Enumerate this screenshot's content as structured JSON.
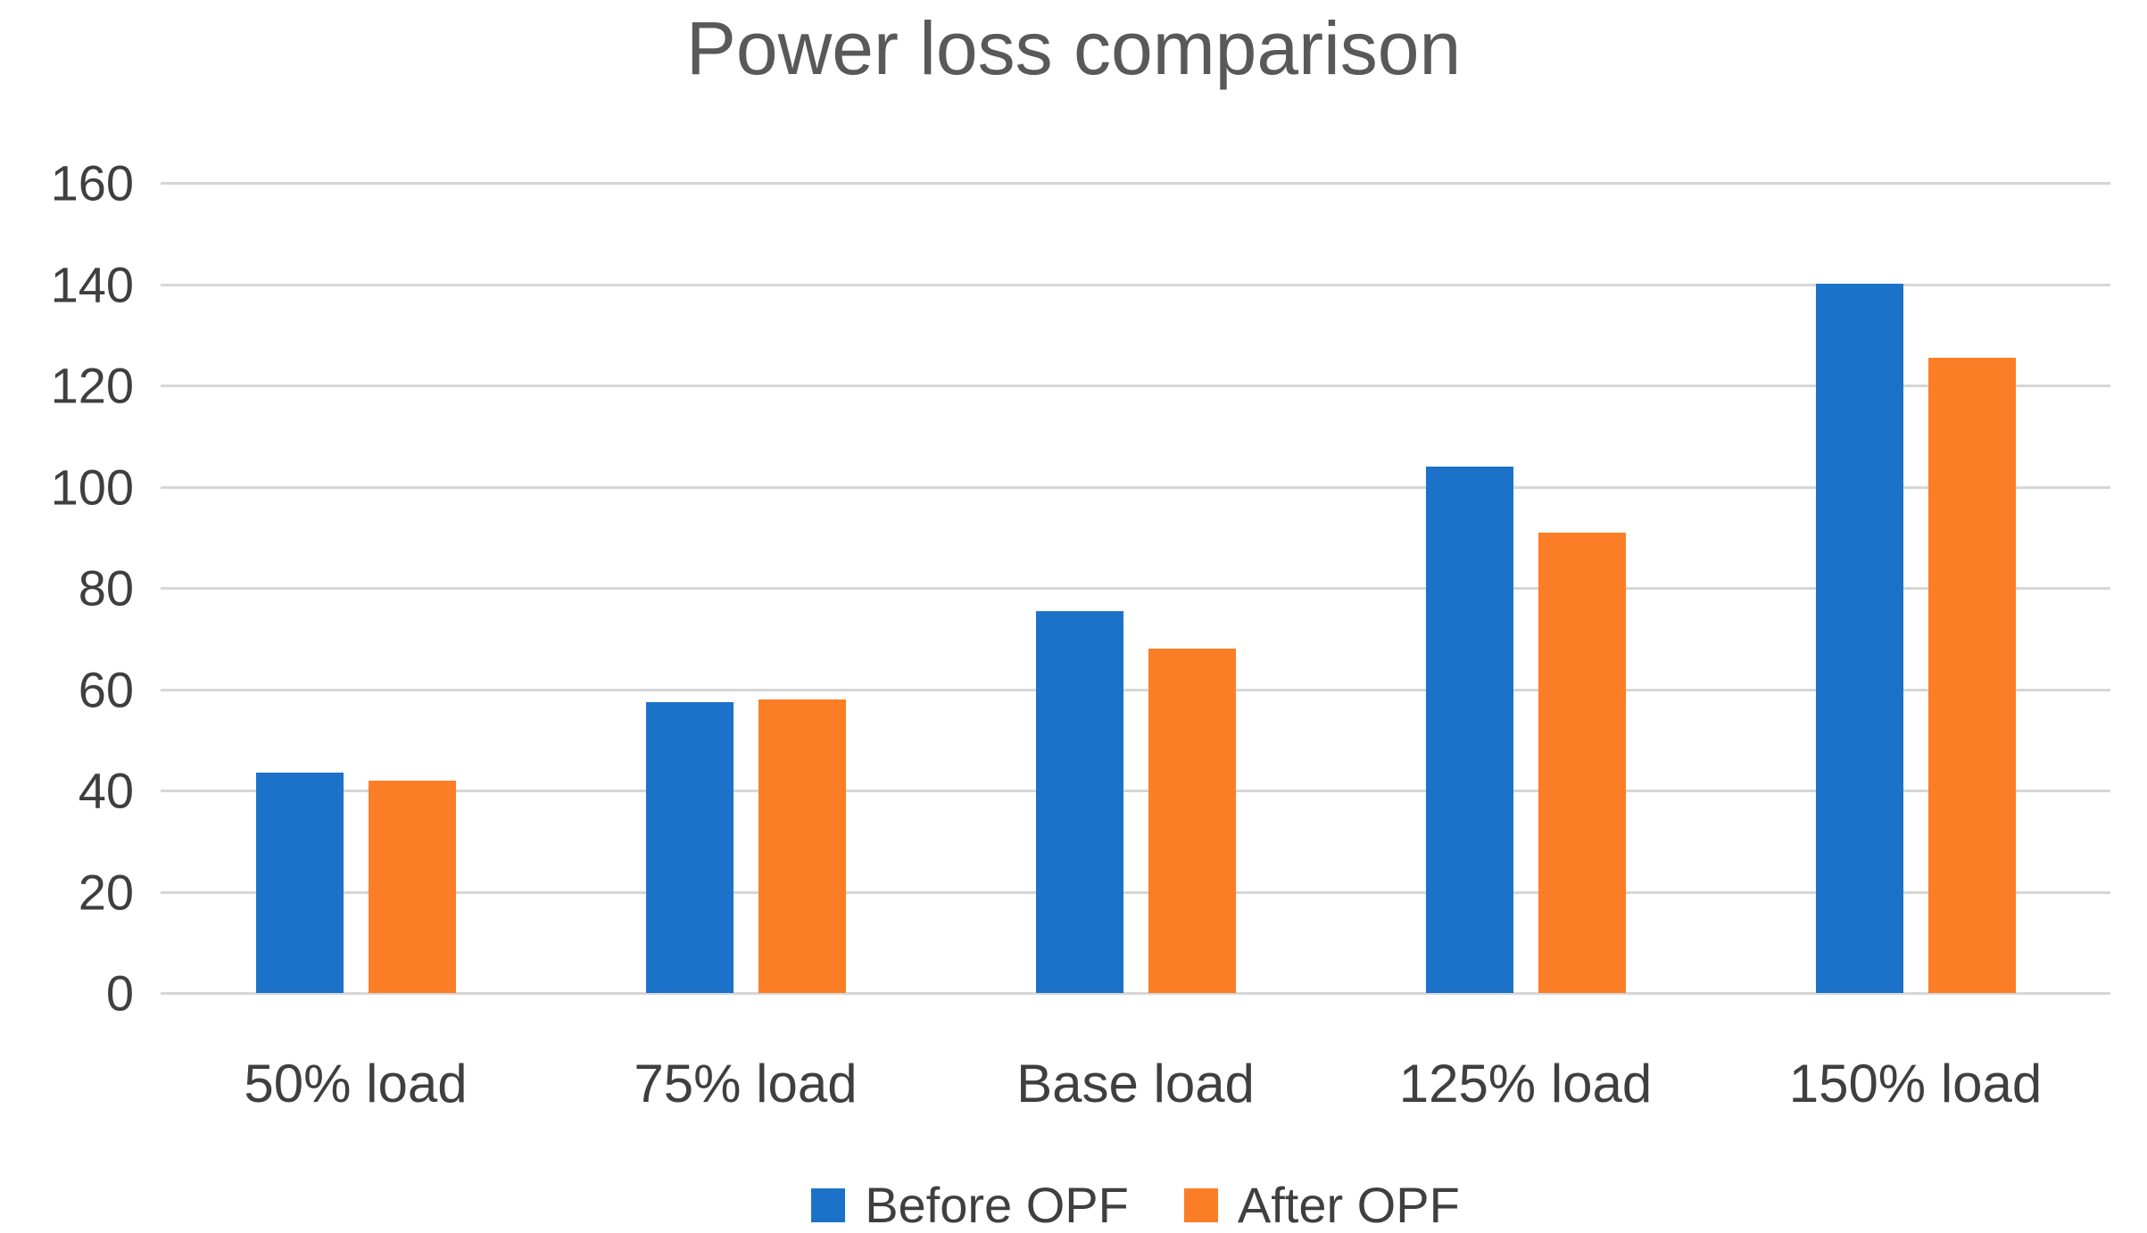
{
  "chart_data": {
    "type": "bar",
    "title": "Power loss comparison",
    "categories": [
      "50% load",
      "75% load",
      "Base load",
      "125% load",
      "150% load"
    ],
    "series": [
      {
        "name": "Before OPF",
        "color": "#1b72c8",
        "values": [
          43.5,
          57.5,
          75.5,
          104,
          140
        ]
      },
      {
        "name": "After OPF",
        "color": "#fb7e26",
        "values": [
          42,
          58,
          68,
          91,
          125.5
        ]
      }
    ],
    "xlabel": "",
    "ylabel": "",
    "ylim": [
      0,
      160
    ],
    "y_ticks": [
      0,
      20,
      40,
      60,
      80,
      100,
      120,
      140,
      160
    ],
    "grid": true,
    "legend_position": "bottom"
  },
  "style": {
    "gridline_color": "#d6d6d6",
    "title_color": "#595959",
    "axis_text_color": "#3f3f3f",
    "background": "#ffffff"
  }
}
